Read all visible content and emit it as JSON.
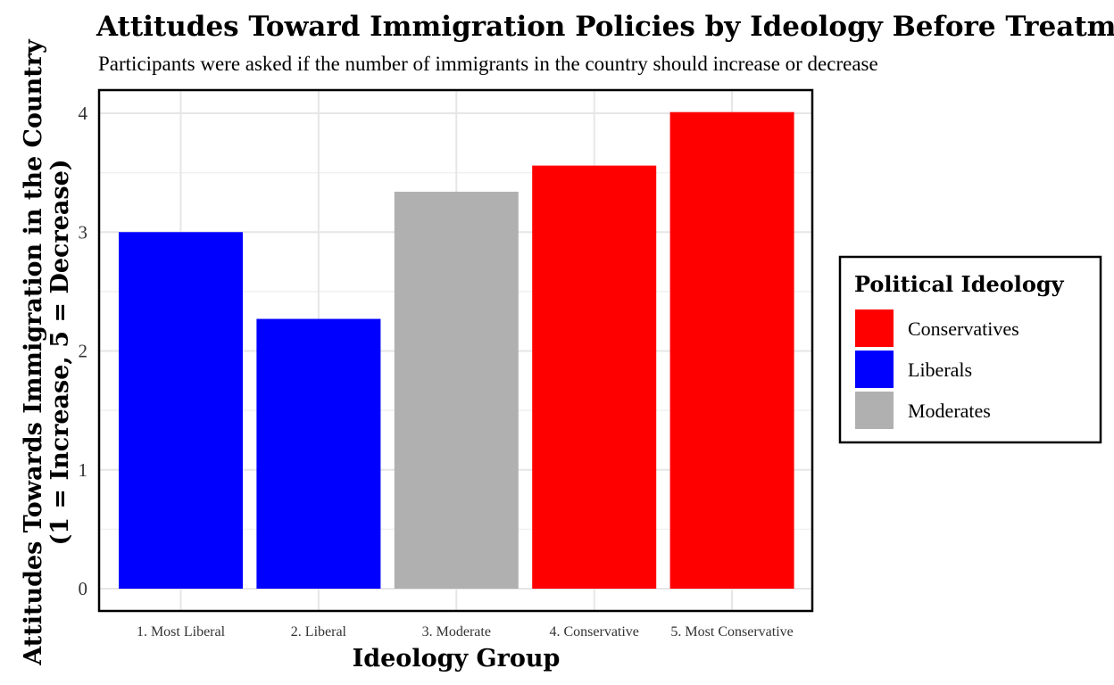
{
  "chart_data": {
    "type": "bar",
    "title": "Attitudes Toward Immigration Policies by Ideology Before Treatment",
    "subtitle": "Participants were asked if the number of immigrants in the country should increase or decrease",
    "xlabel": "Ideology Group",
    "ylabel_line1": "Attitudes Towards Immigration in the Country",
    "ylabel_line2": "(1 = Increase, 5 = Decrease)",
    "ylim": [
      0,
      4.2
    ],
    "yticks": [
      0,
      1,
      2,
      3,
      4
    ],
    "ytick_labels": [
      "0",
      "1",
      "2",
      "3",
      "4"
    ],
    "grid": true,
    "categories": [
      "1. Most Liberal",
      "2. Liberal",
      "3. Moderate",
      "4. Conservative",
      "5. Most Conservative"
    ],
    "values": [
      3.0,
      2.27,
      3.34,
      3.56,
      4.01
    ],
    "groups": [
      "Liberals",
      "Liberals",
      "Moderates",
      "Conservatives",
      "Conservatives"
    ],
    "legend": {
      "title": "Political Ideology",
      "placement": "right",
      "entries": [
        {
          "name": "Conservatives",
          "color": "#ff0000"
        },
        {
          "name": "Liberals",
          "color": "#0000ff"
        },
        {
          "name": "Moderates",
          "color": "#b0b0b0"
        }
      ]
    }
  }
}
